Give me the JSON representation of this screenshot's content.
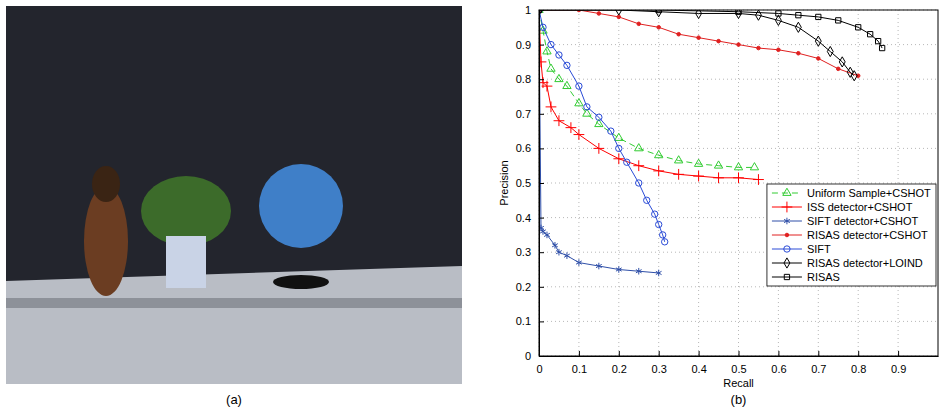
{
  "panel_labels": [
    "(a)",
    "(b)"
  ],
  "chart_data": {
    "type": "line",
    "x_label": "Recall",
    "y_label": "Precision",
    "xlim": [
      0,
      1
    ],
    "ylim": [
      0,
      1
    ],
    "xticks": [
      0,
      0.1,
      0.2,
      0.3,
      0.4,
      0.5,
      0.6,
      0.7,
      0.8,
      0.9
    ],
    "yticks": [
      0,
      0.1,
      0.2,
      0.3,
      0.4,
      0.5,
      0.6,
      0.7,
      0.8,
      0.9,
      1
    ],
    "grid": true,
    "legend": "right",
    "series": [
      {
        "name": "Uniform Sample+CSHOT",
        "color": "#33cc33",
        "marker": "triangle",
        "line_style": "dashed",
        "x": [
          0,
          0.01,
          0.02,
          0.03,
          0.05,
          0.07,
          0.1,
          0.12,
          0.15,
          0.2,
          0.25,
          0.3,
          0.35,
          0.4,
          0.45,
          0.5,
          0.54
        ],
        "values": [
          1,
          0.94,
          0.88,
          0.83,
          0.8,
          0.78,
          0.73,
          0.7,
          0.67,
          0.63,
          0.6,
          0.58,
          0.565,
          0.555,
          0.55,
          0.545,
          0.545
        ]
      },
      {
        "name": "ISS detector+CSHOT",
        "color": "#ff0000",
        "marker": "plus",
        "line_style": "solid",
        "x": [
          0,
          0.005,
          0.01,
          0.02,
          0.03,
          0.05,
          0.08,
          0.1,
          0.15,
          0.2,
          0.25,
          0.3,
          0.35,
          0.4,
          0.45,
          0.5,
          0.55
        ],
        "values": [
          1,
          0.85,
          0.79,
          0.78,
          0.72,
          0.68,
          0.66,
          0.64,
          0.6,
          0.57,
          0.55,
          0.535,
          0.525,
          0.52,
          0.515,
          0.515,
          0.51
        ]
      },
      {
        "name": "SIFT detector+CSHOT",
        "color": "#2f4fa8",
        "marker": "star",
        "line_style": "solid",
        "x": [
          0,
          0.005,
          0.01,
          0.02,
          0.04,
          0.05,
          0.07,
          0.1,
          0.15,
          0.2,
          0.25,
          0.3
        ],
        "values": [
          1,
          0.37,
          0.36,
          0.35,
          0.32,
          0.3,
          0.29,
          0.27,
          0.26,
          0.25,
          0.245,
          0.24
        ]
      },
      {
        "name": "RISAS detector+CSHOT",
        "color": "#e02020",
        "marker": "dot",
        "line_style": "solid",
        "x": [
          0,
          0.1,
          0.15,
          0.2,
          0.25,
          0.3,
          0.35,
          0.4,
          0.45,
          0.5,
          0.55,
          0.6,
          0.65,
          0.7,
          0.75,
          0.8
        ],
        "values": [
          1,
          1,
          0.99,
          0.98,
          0.96,
          0.95,
          0.93,
          0.92,
          0.91,
          0.9,
          0.89,
          0.885,
          0.875,
          0.86,
          0.83,
          0.81
        ]
      },
      {
        "name": "SIFT",
        "color": "#2a4bd7",
        "marker": "circle",
        "line_style": "solid",
        "x": [
          0,
          0.01,
          0.03,
          0.05,
          0.07,
          0.1,
          0.12,
          0.15,
          0.18,
          0.2,
          0.22,
          0.25,
          0.27,
          0.29,
          0.3,
          0.31,
          0.315
        ],
        "values": [
          1,
          0.95,
          0.9,
          0.87,
          0.84,
          0.78,
          0.72,
          0.69,
          0.65,
          0.6,
          0.56,
          0.5,
          0.45,
          0.41,
          0.38,
          0.35,
          0.33
        ]
      },
      {
        "name": "RISAS detector+LOIND",
        "color": "#000000",
        "marker": "diamond",
        "line_style": "solid",
        "x": [
          0,
          0.2,
          0.3,
          0.4,
          0.5,
          0.55,
          0.6,
          0.65,
          0.7,
          0.73,
          0.76,
          0.78,
          0.79
        ],
        "values": [
          1,
          1,
          0.995,
          0.99,
          0.99,
          0.985,
          0.97,
          0.95,
          0.91,
          0.88,
          0.85,
          0.82,
          0.81
        ]
      },
      {
        "name": "RISAS",
        "color": "#000000",
        "marker": "square",
        "line_style": "solid",
        "x": [
          0,
          0.3,
          0.5,
          0.6,
          0.65,
          0.7,
          0.75,
          0.8,
          0.83,
          0.85,
          0.86
        ],
        "values": [
          1,
          1,
          0.995,
          0.99,
          0.985,
          0.98,
          0.97,
          0.95,
          0.93,
          0.91,
          0.89
        ]
      }
    ]
  }
}
